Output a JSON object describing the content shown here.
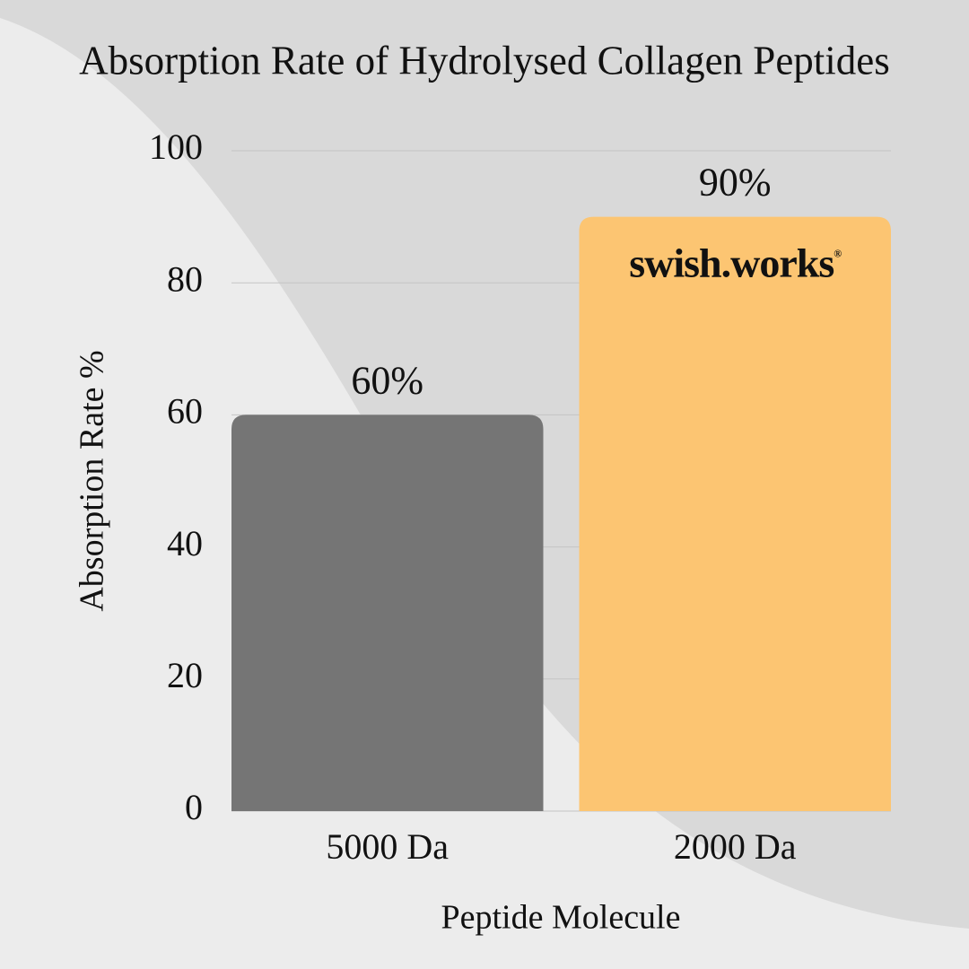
{
  "chart_data": {
    "type": "bar",
    "title": "Absorption Rate of Hydrolysed Collagen Peptides",
    "y_label": "Absorption Rate %",
    "x_label": "Peptide Molecule",
    "categories": [
      "5000 Da",
      "2000 Da"
    ],
    "values": [
      60,
      90
    ],
    "value_labels": [
      "60%",
      "90%"
    ],
    "colors": [
      "#757575",
      "#fcc572"
    ],
    "ylim": [
      0,
      100
    ],
    "yticks": [
      0,
      20,
      40,
      60,
      80,
      100
    ],
    "grid": true,
    "brand": "swish.works",
    "brand_mark": "®"
  }
}
